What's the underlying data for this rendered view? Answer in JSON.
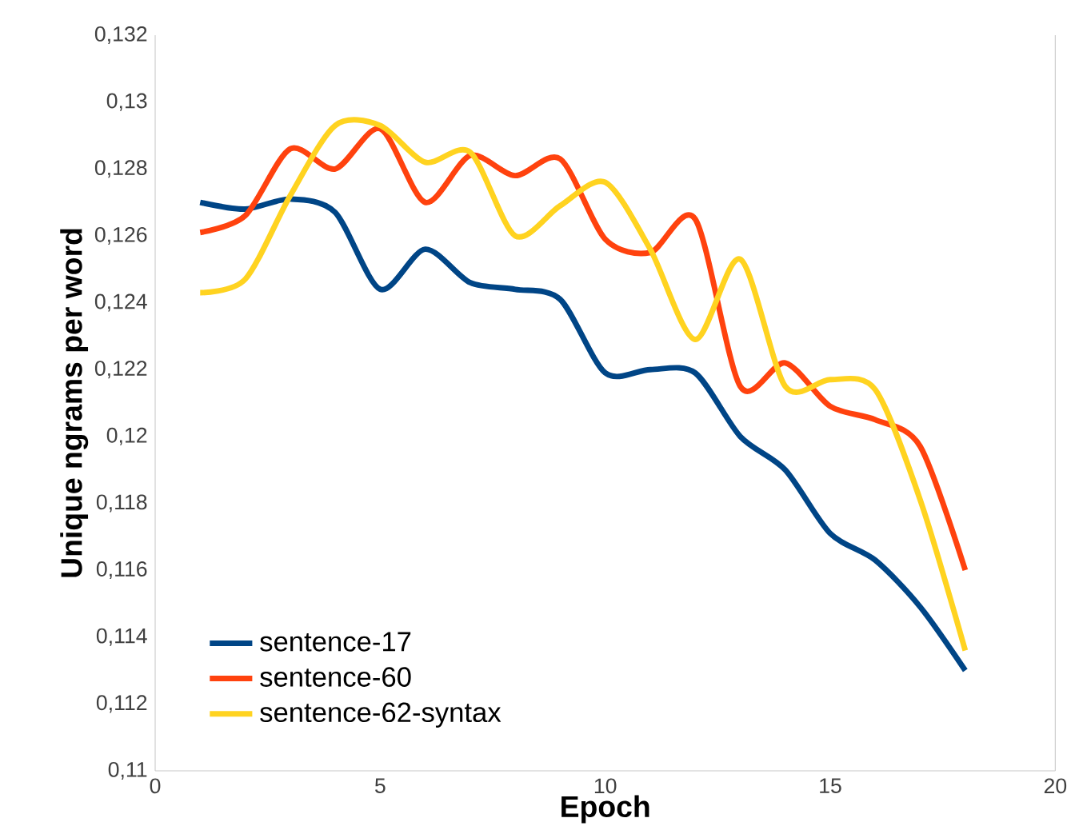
{
  "chart_data": {
    "type": "line",
    "xlabel": "Epoch",
    "ylabel": "Unique ngrams per word",
    "x": [
      1,
      2,
      3,
      4,
      5,
      6,
      7,
      8,
      9,
      10,
      11,
      12,
      13,
      14,
      15,
      16,
      17,
      18
    ],
    "series": [
      {
        "name": "sentence-17",
        "color": "#004586",
        "values": [
          0.127,
          0.1268,
          0.1271,
          0.1267,
          0.1244,
          0.1256,
          0.1246,
          0.1244,
          0.1241,
          0.1219,
          0.122,
          0.1219,
          0.12,
          0.119,
          0.1171,
          0.1163,
          0.1149,
          0.113
        ]
      },
      {
        "name": "sentence-60",
        "color": "#ff420e",
        "values": [
          0.1261,
          0.1266,
          0.1286,
          0.128,
          0.1292,
          0.127,
          0.1284,
          0.1278,
          0.1283,
          0.1259,
          0.1255,
          0.1265,
          0.1215,
          0.1222,
          0.1209,
          0.1205,
          0.1197,
          0.116
        ]
      },
      {
        "name": "sentence-62-syntax",
        "color": "#ffd320",
        "values": [
          0.1243,
          0.1247,
          0.1272,
          0.1293,
          0.1293,
          0.1282,
          0.1285,
          0.126,
          0.1269,
          0.1276,
          0.1256,
          0.1229,
          0.1253,
          0.1215,
          0.1217,
          0.1214,
          0.1181,
          0.1136
        ]
      }
    ],
    "xlim": [
      0,
      20
    ],
    "xticks": [
      0,
      5,
      10,
      15,
      20
    ],
    "ylim": [
      0.11,
      0.132
    ],
    "yticks": [
      {
        "value": 0.11,
        "label": "0,11"
      },
      {
        "value": 0.112,
        "label": "0,112"
      },
      {
        "value": 0.114,
        "label": "0,114"
      },
      {
        "value": 0.116,
        "label": "0,116"
      },
      {
        "value": 0.118,
        "label": "0,118"
      },
      {
        "value": 0.12,
        "label": "0,12"
      },
      {
        "value": 0.122,
        "label": "0,122"
      },
      {
        "value": 0.124,
        "label": "0,124"
      },
      {
        "value": 0.126,
        "label": "0,126"
      },
      {
        "value": 0.128,
        "label": "0,128"
      },
      {
        "value": 0.13,
        "label": "0,13"
      },
      {
        "value": 0.132,
        "label": "0,132"
      }
    ],
    "legend": "bottom left",
    "marker": "none",
    "line_style": "solid",
    "grid": false
  }
}
